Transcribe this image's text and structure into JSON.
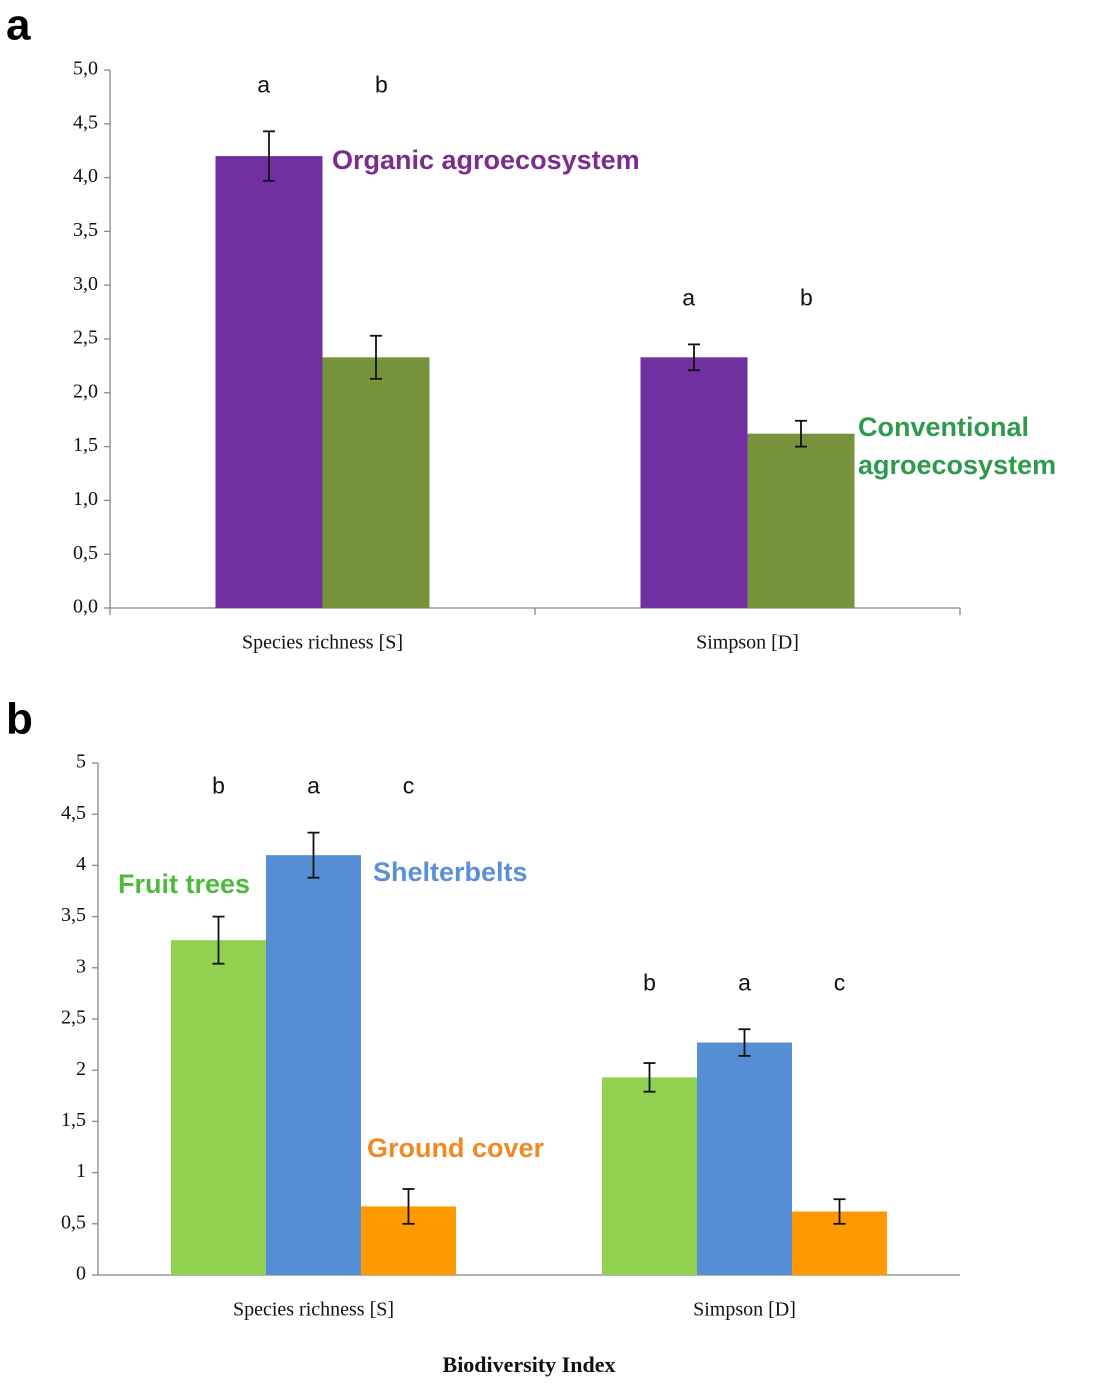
{
  "chart_data": [
    {
      "type": "bar",
      "panel": "a",
      "categories": [
        "Species richness [S]",
        "Simpson [D]"
      ],
      "series": [
        {
          "name": "Organic agroecosystem",
          "color": "#7030a0",
          "label_color": "#7b2c8f",
          "values": [
            4.2,
            2.33
          ],
          "errors": [
            0.23,
            0.12
          ],
          "letters": [
            "a",
            "a"
          ]
        },
        {
          "name": "Conventional agroecosystem",
          "color": "#77933c",
          "label_color": "#2e9a4e",
          "values": [
            2.33,
            1.62
          ],
          "errors": [
            0.2,
            0.12
          ],
          "letters": [
            "b",
            "b"
          ]
        }
      ],
      "ylim": [
        0,
        5
      ],
      "yticks": [
        {
          "value": 0,
          "label": "0,0"
        },
        {
          "value": 0.5,
          "label": "0,5"
        },
        {
          "value": 1,
          "label": "1,0"
        },
        {
          "value": 1.5,
          "label": "1,5"
        },
        {
          "value": 2,
          "label": "2,0"
        },
        {
          "value": 2.5,
          "label": "2,5"
        },
        {
          "value": 3,
          "label": "3,0"
        },
        {
          "value": 3.5,
          "label": "3,5"
        },
        {
          "value": 4,
          "label": "4,0"
        },
        {
          "value": 4.5,
          "label": "4,5"
        },
        {
          "value": 5,
          "label": "5,0"
        }
      ]
    },
    {
      "type": "bar",
      "panel": "b",
      "xlabel": "Biodiversity Index",
      "categories": [
        "Species richness [S]",
        "Simpson [D]"
      ],
      "series": [
        {
          "name": "Fruit trees",
          "color": "#92d050",
          "label_color": "#4cbb3a",
          "values": [
            3.27,
            1.93
          ],
          "errors": [
            0.23,
            0.14
          ],
          "letters": [
            "b",
            "b"
          ]
        },
        {
          "name": "Shelterbelts",
          "color": "#558ed5",
          "label_color": "#5b8fd6",
          "values": [
            4.1,
            2.27
          ],
          "errors": [
            0.22,
            0.13
          ],
          "letters": [
            "a",
            "a"
          ]
        },
        {
          "name": "Ground cover",
          "color": "#ff9900",
          "label_color": "#f08a24",
          "values": [
            0.67,
            0.62
          ],
          "errors": [
            0.17,
            0.12
          ],
          "letters": [
            "c",
            "c"
          ]
        }
      ],
      "ylim": [
        0,
        5
      ],
      "yticks": [
        0,
        {
          "value": 0.5,
          "label": "0,5"
        },
        1,
        {
          "value": 1.5,
          "label": "1,5"
        },
        2,
        {
          "value": 2.5,
          "label": "2,5"
        },
        3,
        {
          "value": 3.5,
          "label": "3,5"
        },
        4,
        {
          "value": 4.5,
          "label": "4,5"
        },
        5
      ]
    }
  ]
}
